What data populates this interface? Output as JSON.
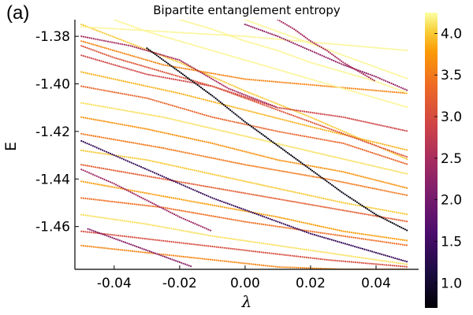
{
  "panel_label": "(a)",
  "chart_data": {
    "type": "scatter",
    "title": "Bipartite entanglement entropy",
    "xlabel": "λ",
    "ylabel": "E",
    "xlim": [
      -0.052,
      0.053
    ],
    "ylim": [
      -1.478,
      -1.373
    ],
    "x_ticks": [
      -0.04,
      -0.02,
      0.0,
      0.02,
      0.04
    ],
    "x_tick_labels": [
      "-0.04",
      "-0.02",
      "0.00",
      "0.02",
      "0.04"
    ],
    "y_ticks": [
      -1.38,
      -1.4,
      -1.42,
      -1.44,
      -1.46
    ],
    "y_tick_labels": [
      "-1.38",
      "-1.40",
      "-1.42",
      "-1.44",
      "-1.46"
    ],
    "grid": false,
    "colormap": "inferno",
    "colorbar": {
      "range": [
        0.7,
        4.25
      ],
      "ticks": [
        1.0,
        1.5,
        2.0,
        2.5,
        3.0,
        3.5,
        4.0
      ],
      "tick_labels": [
        "1.0",
        "1.5",
        "2.0",
        "2.5",
        "3.0",
        "3.5",
        "4.0"
      ]
    },
    "series": [
      {
        "x": [
          -0.05,
          -0.02,
          0.0,
          0.02,
          0.04,
          0.05
        ],
        "y": [
          -1.375,
          -1.391,
          -1.403,
          -1.414,
          -1.426,
          -1.432
        ],
        "entropy": 4.0
      },
      {
        "x": [
          -0.05,
          -0.025,
          0.0,
          0.025,
          0.05
        ],
        "y": [
          -1.382,
          -1.392,
          -1.398,
          -1.401,
          -1.404
        ],
        "entropy": 3.6
      },
      {
        "x": [
          -0.05,
          -0.03,
          -0.01,
          0.01,
          0.03,
          0.05
        ],
        "y": [
          -1.388,
          -1.396,
          -1.401,
          -1.41,
          -1.414,
          -1.42
        ],
        "entropy": 2.9
      },
      {
        "x": [
          -0.05,
          -0.02,
          0.0,
          0.02,
          0.05
        ],
        "y": [
          -1.395,
          -1.404,
          -1.411,
          -1.418,
          -1.428
        ],
        "entropy": 3.9
      },
      {
        "x": [
          -0.05,
          -0.03,
          -0.01,
          0.01,
          0.03,
          0.05
        ],
        "y": [
          -1.401,
          -1.406,
          -1.414,
          -1.42,
          -1.425,
          -1.434
        ],
        "entropy": 3.3
      },
      {
        "x": [
          -0.05,
          -0.025,
          0.0,
          0.025,
          0.05
        ],
        "y": [
          -1.408,
          -1.414,
          -1.422,
          -1.43,
          -1.438
        ],
        "entropy": 4.1
      },
      {
        "x": [
          -0.05,
          -0.03,
          -0.01,
          0.01,
          0.03,
          0.05
        ],
        "y": [
          -1.414,
          -1.419,
          -1.425,
          -1.432,
          -1.437,
          -1.444
        ],
        "entropy": 3.7
      },
      {
        "x": [
          -0.05,
          -0.025,
          0.0,
          0.025,
          0.05
        ],
        "y": [
          -1.421,
          -1.427,
          -1.434,
          -1.44,
          -1.447
        ],
        "entropy": 3.5
      },
      {
        "x": [
          -0.05,
          -0.03,
          -0.01,
          0.01,
          0.03,
          0.05
        ],
        "y": [
          -1.428,
          -1.432,
          -1.438,
          -1.444,
          -1.45,
          -1.455
        ],
        "entropy": 4.0
      },
      {
        "x": [
          -0.05,
          -0.025,
          0.0,
          0.025,
          0.05
        ],
        "y": [
          -1.434,
          -1.44,
          -1.446,
          -1.452,
          -1.458
        ],
        "entropy": 3.2
      },
      {
        "x": [
          -0.05,
          -0.03,
          -0.01,
          0.01,
          0.03,
          0.05
        ],
        "y": [
          -1.441,
          -1.446,
          -1.451,
          -1.456,
          -1.462,
          -1.466
        ],
        "entropy": 3.8
      },
      {
        "x": [
          -0.05,
          -0.025,
          0.0,
          0.025,
          0.05
        ],
        "y": [
          -1.448,
          -1.452,
          -1.458,
          -1.463,
          -1.468
        ],
        "entropy": 3.4
      },
      {
        "x": [
          -0.05,
          -0.03,
          -0.01,
          0.01,
          0.03,
          0.05
        ],
        "y": [
          -1.455,
          -1.459,
          -1.464,
          -1.468,
          -1.472,
          -1.476
        ],
        "entropy": 4.1
      },
      {
        "x": [
          -0.05,
          -0.025,
          0.0,
          0.025,
          0.05
        ],
        "y": [
          -1.462,
          -1.466,
          -1.47,
          -1.474,
          -1.477
        ],
        "entropy": 3.0
      },
      {
        "x": [
          -0.05,
          -0.03,
          -0.01,
          0.01,
          0.03,
          0.05
        ],
        "y": [
          -1.468,
          -1.471,
          -1.474,
          -1.477,
          -1.478,
          -1.478
        ],
        "entropy": 3.6
      },
      {
        "x": [
          -0.05,
          -0.035,
          -0.02,
          -0.005,
          0.01
        ],
        "y": [
          -1.38,
          -1.384,
          -1.39,
          -1.402,
          -1.41
        ],
        "entropy": 2.5
      },
      {
        "x": [
          -0.05,
          -0.04,
          -0.03,
          -0.02,
          -0.01
        ],
        "y": [
          -1.436,
          -1.442,
          -1.449,
          -1.456,
          -1.462
        ],
        "entropy": 2.4
      },
      {
        "x": [
          -0.048,
          -0.04,
          -0.032,
          -0.024,
          -0.016
        ],
        "y": [
          -1.461,
          -1.465,
          -1.469,
          -1.473,
          -1.477
        ],
        "entropy": 2.2
      },
      {
        "x": [
          -0.05,
          -0.025,
          0.0,
          0.025,
          0.05
        ],
        "y": [
          -1.376,
          -1.378,
          -1.38,
          -1.383,
          -1.386
        ],
        "entropy": 4.2
      },
      {
        "x": [
          -0.04,
          -0.03,
          -0.02,
          -0.01,
          0.0,
          0.01,
          0.02,
          0.03,
          0.04,
          0.05
        ],
        "y": [
          -1.373,
          -1.378,
          -1.382,
          -1.386,
          -1.39,
          -1.394,
          -1.398,
          -1.402,
          -1.406,
          -1.41
        ],
        "entropy": 4.2
      },
      {
        "x": [
          -0.02,
          -0.01,
          0.0,
          0.01,
          0.02,
          0.03,
          0.04,
          0.05
        ],
        "y": [
          -1.373,
          -1.377,
          -1.382,
          -1.386,
          -1.391,
          -1.395,
          -1.399,
          -1.404
        ],
        "entropy": 4.2
      },
      {
        "x": [
          0.0,
          0.01,
          0.02,
          0.03,
          0.04,
          0.05
        ],
        "y": [
          -1.373,
          -1.378,
          -1.383,
          -1.388,
          -1.393,
          -1.398
        ],
        "entropy": 4.2
      },
      {
        "x": [
          -0.05,
          -0.04,
          -0.03,
          -0.02,
          -0.01,
          0.0,
          0.01,
          0.02,
          0.03,
          0.04,
          0.05
        ],
        "y": [
          -1.384,
          -1.389,
          -1.393,
          -1.397,
          -1.401,
          -1.406,
          -1.411,
          -1.416,
          -1.421,
          -1.426,
          -1.431
        ],
        "entropy": 3.1
      },
      {
        "x": [
          -0.03,
          -0.02,
          -0.01,
          0.0,
          0.01,
          0.02,
          0.03,
          0.04,
          0.05
        ],
        "y": [
          -1.385,
          -1.395,
          -1.405,
          -1.416,
          -1.426,
          -1.436,
          -1.446,
          -1.455,
          -1.462
        ],
        "entropy": 0.8
      },
      {
        "x": [
          -0.05,
          -0.04,
          -0.03,
          -0.02,
          -0.01,
          0.0,
          0.01,
          0.02,
          0.03,
          0.04,
          0.05
        ],
        "y": [
          -1.424,
          -1.43,
          -1.436,
          -1.442,
          -1.448,
          -1.453,
          -1.458,
          -1.463,
          -1.467,
          -1.471,
          -1.475
        ],
        "entropy": 1.4
      },
      {
        "x": [
          0.0,
          0.01,
          0.02,
          0.03,
          0.04,
          0.05
        ],
        "y": [
          -1.375,
          -1.38,
          -1.386,
          -1.392,
          -1.397,
          -1.403
        ],
        "entropy": 2.3
      },
      {
        "x": [
          0.01,
          0.015,
          0.02,
          0.025,
          0.03,
          0.035,
          0.04
        ],
        "y": [
          -1.373,
          -1.377,
          -1.382,
          -1.386,
          -1.391,
          -1.395,
          -1.399
        ],
        "entropy": 2.5
      }
    ]
  }
}
